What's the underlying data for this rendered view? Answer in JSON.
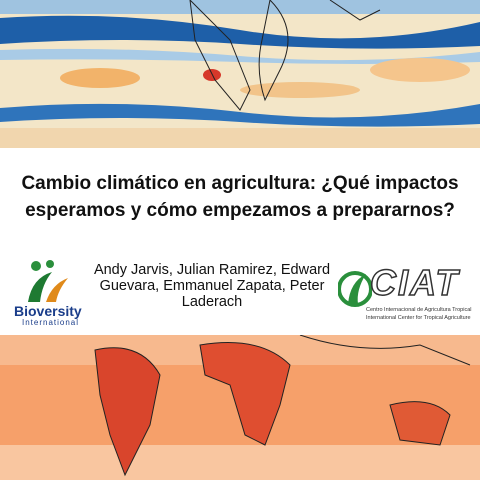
{
  "title_lines": [
    "Cambio climático en agricultura: ¿Qué impactos",
    "esperamos y cómo empezamos a prepararnos?"
  ],
  "author_lines": [
    "Andy Jarvis, Julian Ramirez, Edward",
    "Guevara, Emmanuel Zapata, Peter",
    "Laderach"
  ],
  "left_logo": {
    "name": "Bioversity",
    "subtitle": "International"
  },
  "right_logo": {
    "name": "CIAT",
    "line1": "Centro Internacional de Agricultura Tropical",
    "line2": "International Center for Tropical Agriculture"
  }
}
